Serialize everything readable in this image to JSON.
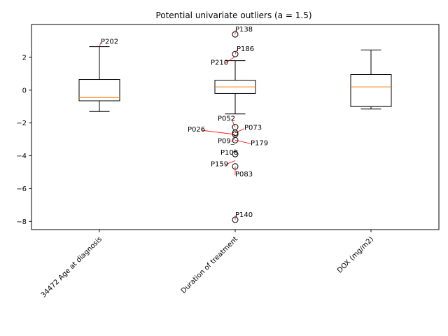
{
  "chart_data": {
    "type": "boxplot",
    "title": "Potential univariate outliers (a = 1.5)",
    "xlabel": "",
    "ylabel": "",
    "ylim": [
      -8.5,
      4.0
    ],
    "yticks": [
      -8,
      -6,
      -4,
      -2,
      0,
      2
    ],
    "grid": false,
    "categories": [
      "34472 Age at diagnosis",
      "Duration of treatment",
      "DOX (mg/m2)"
    ],
    "boxes": [
      {
        "category": "34472 Age at diagnosis",
        "whisker_low": -1.3,
        "q1": -0.65,
        "median": -0.45,
        "q3": 0.65,
        "whisker_high": 2.65,
        "outliers": []
      },
      {
        "category": "Duration of treatment",
        "whisker_low": -1.45,
        "q1": -0.2,
        "median": 0.2,
        "q3": 0.6,
        "whisker_high": 1.8,
        "outliers": [
          3.4,
          2.2,
          -2.25,
          -2.6,
          -2.7,
          -3.05,
          -3.9,
          -4.65,
          -7.9
        ]
      },
      {
        "category": "DOX (mg/m2)",
        "whisker_low": -1.15,
        "q1": -1.0,
        "median": 0.2,
        "q3": 0.95,
        "whisker_high": 2.45,
        "outliers": []
      }
    ],
    "annotations": [
      {
        "label": "P202",
        "box": 0,
        "value": 2.65,
        "dx": 2,
        "dy": -8,
        "anchor": "start"
      },
      {
        "label": "P138",
        "box": 1,
        "value": 3.4,
        "dx": 0,
        "dy": -8,
        "anchor": "start"
      },
      {
        "label": "P186",
        "box": 1,
        "value": 2.2,
        "dx": 2,
        "dy": -8,
        "anchor": "start"
      },
      {
        "label": "P210",
        "box": 1,
        "value": 2.05,
        "dx": -35,
        "dy": 8,
        "anchor": "start"
      },
      {
        "label": "P052",
        "box": 1,
        "value": -2.25,
        "dx": -25,
        "dy": -13,
        "anchor": "start"
      },
      {
        "label": "P073",
        "box": 1,
        "value": -2.6,
        "dx": 13,
        "dy": -8,
        "anchor": "start"
      },
      {
        "label": "P026",
        "box": 1,
        "value": -2.7,
        "dx": -68,
        "dy": -8,
        "anchor": "start"
      },
      {
        "label": "P09_",
        "box": 1,
        "value": -2.9,
        "dx": -25,
        "dy": 4,
        "anchor": "start"
      },
      {
        "label": "P179",
        "box": 1,
        "value": -3.05,
        "dx": 22,
        "dy": 3,
        "anchor": "start"
      },
      {
        "label": "P108",
        "box": 1,
        "value": -3.6,
        "dx": -21,
        "dy": 4,
        "anchor": "start"
      },
      {
        "label": "P159",
        "box": 1,
        "value": -4.3,
        "dx": -35,
        "dy": 4,
        "anchor": "start"
      },
      {
        "label": "P083",
        "box": 1,
        "value": -4.65,
        "dx": 0,
        "dy": 10,
        "anchor": "start"
      },
      {
        "label": "P140",
        "box": 1,
        "value": -7.9,
        "dx": 0,
        "dy": -8,
        "anchor": "start"
      }
    ],
    "colors": {
      "median": "#ff7f0e",
      "box": "#000000",
      "annotation_arrow": "#ff0000"
    }
  }
}
